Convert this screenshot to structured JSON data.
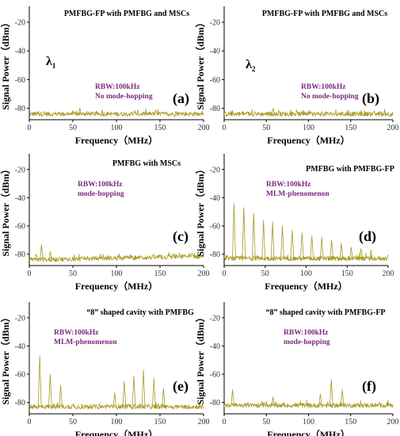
{
  "colors": {
    "trace": "#a69a1e",
    "annotation": "#7b2a80",
    "axis": "#000000"
  },
  "chart_data": [
    {
      "type": "line",
      "panel_label": "(a)",
      "title": "PMFBG-FP with PMFBG and MSCs",
      "xlabel": "Frequency（MHz）",
      "ylabel": "Signal Power（dBm）",
      "xlim": [
        0,
        200
      ],
      "ylim": [
        -88,
        -10
      ],
      "xticks": [
        "0",
        "50",
        "100",
        "150",
        "200"
      ],
      "yticks": [
        "-20",
        "-40",
        "-60",
        "-80"
      ],
      "annotations": [
        "RBW:100kHz",
        "No mode-hopping"
      ],
      "wavelength_label": "λ",
      "wavelength_sub": "1",
      "noise_floor": -84,
      "peaks": [
        {
          "x": 58,
          "y": -80
        }
      ]
    },
    {
      "type": "line",
      "panel_label": "(b)",
      "title": "PMFBG-FP with PMFBG and MSCs",
      "xlabel": "Frequency（MHz）",
      "ylabel": "Signal Power（dBm）",
      "xlim": [
        0,
        200
      ],
      "ylim": [
        -88,
        -10
      ],
      "xticks": [
        "0",
        "50",
        "100",
        "150",
        "200"
      ],
      "yticks": [
        "-20",
        "-40",
        "-60",
        "-80"
      ],
      "annotations": [
        "RBW:100kHz",
        "No mode-hopping"
      ],
      "wavelength_label": "λ",
      "wavelength_sub": "2",
      "noise_floor": -84,
      "peaks": [
        {
          "x": 58,
          "y": -80
        }
      ]
    },
    {
      "type": "line",
      "panel_label": "(c)",
      "title": "PMFBG with MSCs",
      "xlabel": "Frequency（MHz）",
      "ylabel": "Signal Power（dBm）",
      "xlim": [
        0,
        200
      ],
      "ylim": [
        -88,
        -10
      ],
      "xticks": [
        "0",
        "50",
        "100",
        "150",
        "200"
      ],
      "yticks": [
        "-20",
        "-40",
        "-60",
        "-80"
      ],
      "annotations": [
        "RBW:100kHz",
        "mode-hopping"
      ],
      "noise_floor": -84,
      "peaks": [
        {
          "x": 14,
          "y": -73
        },
        {
          "x": 24,
          "y": -78
        },
        {
          "x": 8,
          "y": -80
        }
      ]
    },
    {
      "type": "line",
      "panel_label": "(d)",
      "title": "PMFBG with PMFBG-FP",
      "xlabel": "Frequency（MHz）",
      "ylabel": "Signal Power（dBm）",
      "xlim": [
        0,
        200
      ],
      "ylim": [
        -88,
        -10
      ],
      "xticks": [
        "0",
        "50",
        "100",
        "150",
        "200"
      ],
      "yticks": [
        "-20",
        "-40",
        "-60",
        "-80"
      ],
      "annotations": [
        "RBW:100kHz",
        "MLM-phenomenon"
      ],
      "noise_floor": -83,
      "peaks": [
        {
          "x": 12,
          "y": -44
        },
        {
          "x": 24,
          "y": -47
        },
        {
          "x": 36,
          "y": -51
        },
        {
          "x": 48,
          "y": -56
        },
        {
          "x": 59,
          "y": -57
        },
        {
          "x": 71,
          "y": -60
        },
        {
          "x": 83,
          "y": -63
        },
        {
          "x": 95,
          "y": -65
        },
        {
          "x": 107,
          "y": -67
        },
        {
          "x": 119,
          "y": -68
        },
        {
          "x": 131,
          "y": -70
        },
        {
          "x": 143,
          "y": -72
        },
        {
          "x": 155,
          "y": -75
        },
        {
          "x": 167,
          "y": -76
        },
        {
          "x": 179,
          "y": -77
        }
      ]
    },
    {
      "type": "line",
      "panel_label": "(e)",
      "title": "“8” shaped cavity with PMFBG",
      "xlabel": "Frequency（MHz）",
      "ylabel": "Signal Power（dBm）",
      "xlim": [
        0,
        200
      ],
      "ylim": [
        -88,
        -10
      ],
      "xticks": [
        "0",
        "50",
        "100",
        "150",
        "200"
      ],
      "yticks": [
        "-20",
        "-40",
        "-60",
        "-80"
      ],
      "annotations": [
        "RBW:100kHz",
        "MLM-phenomenon"
      ],
      "noise_floor": -83,
      "peaks": [
        {
          "x": 12,
          "y": -47
        },
        {
          "x": 24,
          "y": -60
        },
        {
          "x": 36,
          "y": -68
        },
        {
          "x": 98,
          "y": -73
        },
        {
          "x": 109,
          "y": -65
        },
        {
          "x": 120,
          "y": -61
        },
        {
          "x": 131,
          "y": -57
        },
        {
          "x": 143,
          "y": -63
        },
        {
          "x": 154,
          "y": -70
        }
      ]
    },
    {
      "type": "line",
      "panel_label": "(f)",
      "title": "“8” shaped cavity with PMFBG-FP",
      "xlabel": "Frequency（MHz）",
      "ylabel": "Signal Power（dBm）",
      "xlim": [
        0,
        200
      ],
      "ylim": [
        -88,
        -10
      ],
      "xticks": [
        "0",
        "50",
        "100",
        "150",
        "200"
      ],
      "yticks": [
        "-20",
        "-40",
        "-60",
        "-80"
      ],
      "annotations": [
        "RBW:100kHz",
        "mode-hopping"
      ],
      "noise_floor": -82,
      "peaks": [
        {
          "x": 10,
          "y": -71
        },
        {
          "x": 58,
          "y": -76
        },
        {
          "x": 114,
          "y": -74
        },
        {
          "x": 127,
          "y": -64
        },
        {
          "x": 140,
          "y": -71
        }
      ]
    }
  ]
}
